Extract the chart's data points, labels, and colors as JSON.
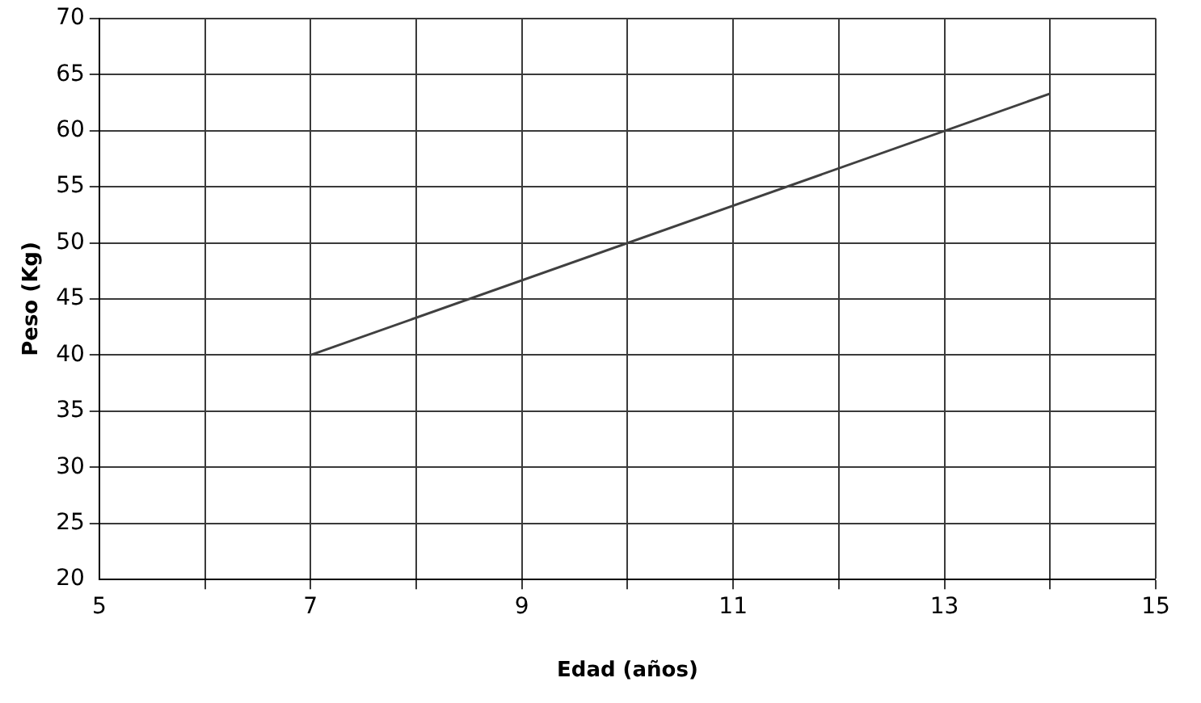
{
  "chart_data": {
    "type": "line",
    "xlabel": "Edad (años)",
    "ylabel": "Peso (Kg)",
    "x": [
      7,
      14
    ],
    "series": [
      {
        "color": "#404040",
        "values": [
          40,
          63.3
        ]
      }
    ],
    "xlim": [
      5,
      15
    ],
    "xticks": [
      5,
      {
        "value": 6,
        "label": null
      },
      7,
      {
        "value": 8,
        "label": null
      },
      9,
      {
        "value": 10,
        "label": null
      },
      11,
      {
        "value": 12,
        "label": null
      },
      13,
      {
        "value": 14,
        "label": null
      },
      15
    ],
    "ylim": [
      20,
      70
    ],
    "yticks": [
      20,
      25,
      30,
      35,
      40,
      45,
      50,
      55,
      60,
      65,
      70
    ],
    "grid": true,
    "legend": false,
    "marker": "none",
    "line_style": "solid"
  }
}
